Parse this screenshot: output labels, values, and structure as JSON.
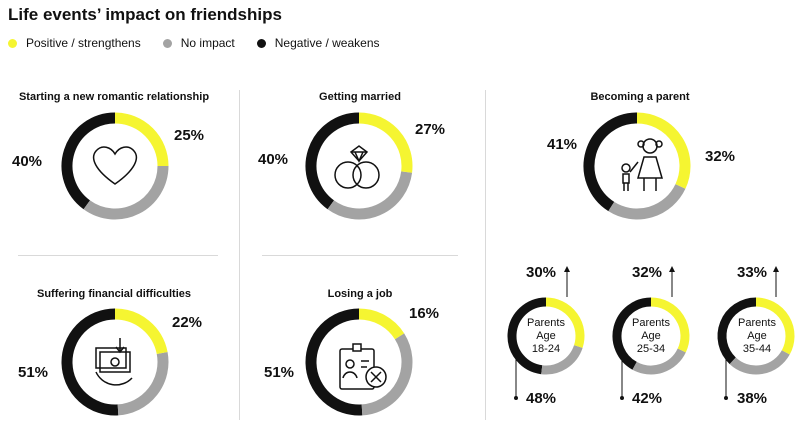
{
  "title": "Life events’ impact on friendships",
  "colors": {
    "positive": "#f5f531",
    "no_impact": "#a3a3a3",
    "negative": "#111111"
  },
  "legend": [
    {
      "label": "Positive / strengthens",
      "color": "#f5f531"
    },
    {
      "label": "No impact",
      "color": "#a3a3a3"
    },
    {
      "label": "Negative / weakens",
      "color": "#111111"
    }
  ],
  "chart_data": [
    {
      "type": "pie",
      "title": "Starting a new romantic relationship",
      "icon": "heart-icon",
      "positive": 25,
      "negative": 40,
      "positive_label": "25%",
      "negative_label": "40%"
    },
    {
      "type": "pie",
      "title": "Getting married",
      "icon": "wedding-rings-icon",
      "positive": 27,
      "negative": 40,
      "positive_label": "27%",
      "negative_label": "40%"
    },
    {
      "type": "pie",
      "title": "Becoming a parent",
      "icon": "parent-child-icon",
      "positive": 32,
      "negative": 41,
      "positive_label": "32%",
      "negative_label": "41%"
    },
    {
      "type": "pie",
      "title": "Suffering financial difficulties",
      "icon": "money-icon",
      "positive": 22,
      "negative": 51,
      "positive_label": "22%",
      "negative_label": "51%"
    },
    {
      "type": "pie",
      "title": "Losing a job",
      "icon": "id-card-x-icon",
      "positive": 16,
      "negative": 51,
      "positive_label": "16%",
      "negative_label": "51%"
    },
    {
      "type": "pie",
      "title": "",
      "inner_text": [
        "Parents",
        "Age",
        "18-24"
      ],
      "positive": 30,
      "negative": 48,
      "positive_label": "30%",
      "negative_label": "48%"
    },
    {
      "type": "pie",
      "title": "",
      "inner_text": [
        "Parents",
        "Age",
        "25-34"
      ],
      "positive": 32,
      "negative": 42,
      "positive_label": "32%",
      "negative_label": "42%"
    },
    {
      "type": "pie",
      "title": "",
      "inner_text": [
        "Parents",
        "Age",
        "35-44"
      ],
      "positive": 33,
      "negative": 38,
      "positive_label": "33%",
      "negative_label": "38%"
    }
  ]
}
